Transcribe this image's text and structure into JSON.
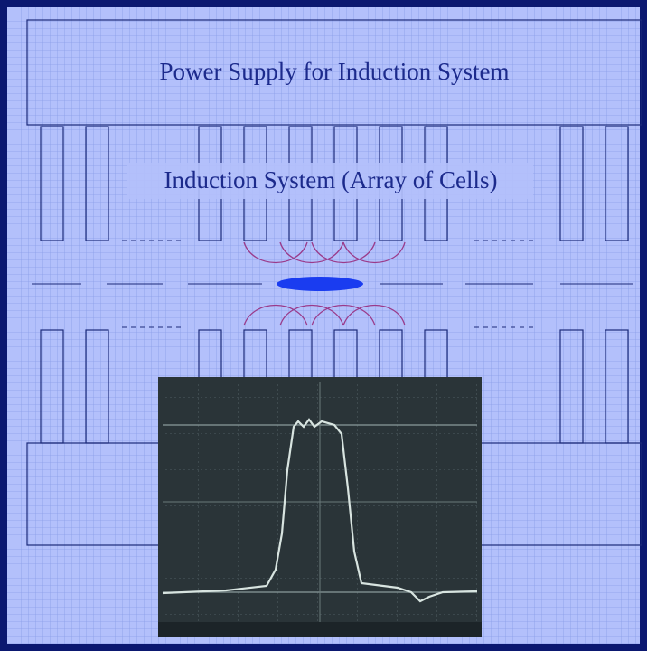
{
  "header": {
    "title": "Power Supply for Induction System"
  },
  "diagram": {
    "label": "Induction System (Array of Cells)"
  }
}
